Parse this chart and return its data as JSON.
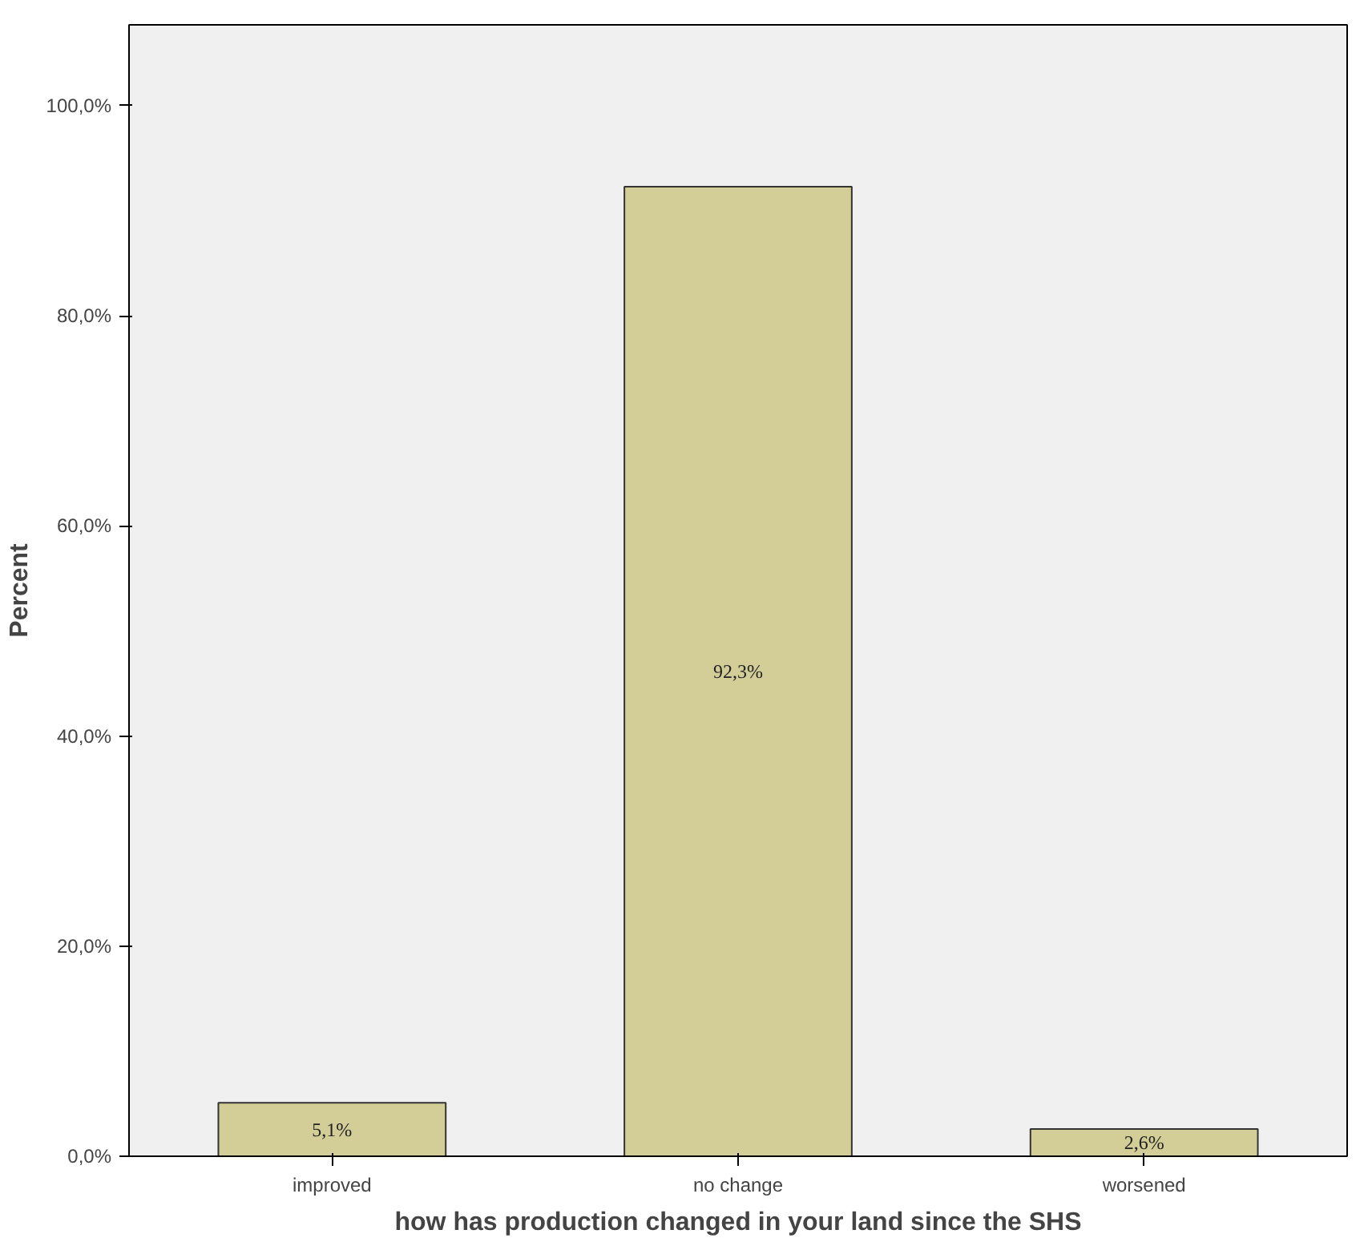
{
  "chart_data": {
    "type": "bar",
    "xlabel": "how has production changed in your land since the SHS",
    "ylabel": "Percent",
    "categories": [
      "improved",
      "no change",
      "worsened"
    ],
    "values": [
      5.1,
      92.3,
      2.6
    ],
    "value_labels": [
      "5,1%",
      "92,3%",
      "2,6%"
    ],
    "color": "#d3ce98",
    "ylim": [
      0,
      107.7
    ],
    "yticks": [
      {
        "value": 0,
        "label": "0,0%"
      },
      {
        "value": 20,
        "label": "20,0%"
      },
      {
        "value": 40,
        "label": "40,0%"
      },
      {
        "value": 60,
        "label": "60,0%"
      },
      {
        "value": 80,
        "label": "80,0%"
      },
      {
        "value": 100,
        "label": "100,0%"
      }
    ],
    "grid": false
  }
}
